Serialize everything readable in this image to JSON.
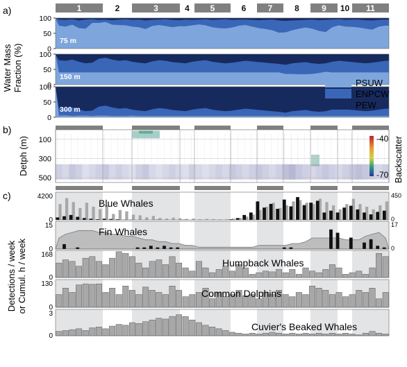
{
  "panels": {
    "a": "a)",
    "b": "b)",
    "c": "c)"
  },
  "cruise_segments": [
    "1",
    "2",
    "3",
    "4",
    "5",
    "6",
    "7",
    "8",
    "9",
    "10",
    "11"
  ],
  "segment_shaded": [
    true,
    false,
    true,
    false,
    true,
    false,
    true,
    false,
    true,
    false,
    true
  ],
  "colors": {
    "psuw": "#7ea6dc",
    "enpcw": "#3a66b8",
    "pew": "#172a5e",
    "segment_bar": "#808080",
    "shade": "#e3e4e6",
    "bar_gray": "#a8a8a8",
    "bar_black": "#111111"
  },
  "chart_data": [
    {
      "type": "area",
      "panel": "a",
      "ylabel": "Water Mass Fraction (%)",
      "yticks": [
        0,
        50,
        100
      ],
      "ylim": [
        0,
        100
      ],
      "depth_labels": [
        "75 m",
        "150 m",
        "300 m"
      ],
      "legend": [
        "PSUW",
        "ENPCW",
        "PEW"
      ],
      "legend_position": "right",
      "series_by_depth": [
        {
          "depth": "75 m",
          "PEW": [
            5,
            6,
            4,
            8,
            5,
            4,
            6,
            5,
            7,
            5,
            4,
            6,
            5,
            8,
            6,
            5,
            4,
            6,
            7,
            5,
            6,
            5,
            4,
            6,
            5,
            4,
            6,
            5,
            5,
            6,
            7,
            6,
            5,
            8,
            9,
            8,
            7,
            6,
            5,
            7,
            6,
            5,
            4,
            6,
            5,
            5,
            7,
            8,
            6,
            5
          ],
          "ENPCW": [
            20,
            22,
            18,
            25,
            30,
            12,
            10,
            8,
            15,
            18,
            20,
            22,
            25,
            28,
            20,
            18,
            22,
            24,
            20,
            22,
            18,
            16,
            20,
            24,
            28,
            30,
            25,
            20,
            18,
            22,
            26,
            30,
            35,
            40,
            38,
            32,
            28,
            25,
            30,
            35,
            40,
            25,
            20,
            22,
            24,
            26,
            28,
            30,
            22,
            20
          ]
        },
        {
          "depth": "150 m",
          "PEW": [
            20,
            22,
            18,
            25,
            30,
            28,
            15,
            12,
            18,
            22,
            20,
            25,
            28,
            30,
            24,
            20,
            22,
            26,
            28,
            30,
            25,
            22,
            20,
            25,
            28,
            30,
            28,
            25,
            22,
            24,
            26,
            28,
            30,
            32,
            35,
            30,
            28,
            26,
            30,
            32,
            30,
            25,
            22,
            24,
            26,
            28,
            30,
            28,
            25,
            22
          ],
          "ENPCW": [
            40,
            38,
            42,
            35,
            30,
            32,
            45,
            48,
            42,
            38,
            40,
            35,
            32,
            30,
            36,
            40,
            38,
            34,
            32,
            30,
            35,
            38,
            40,
            35,
            32,
            30,
            32,
            35,
            38,
            36,
            34,
            32,
            30,
            28,
            30,
            35,
            38,
            40,
            35,
            30,
            28,
            35,
            38,
            36,
            34,
            32,
            30,
            32,
            35,
            38
          ]
        },
        {
          "depth": "300 m",
          "PEW": [
            70,
            72,
            68,
            75,
            80,
            78,
            65,
            62,
            68,
            72,
            70,
            75,
            78,
            80,
            74,
            70,
            72,
            76,
            78,
            80,
            75,
            72,
            70,
            75,
            78,
            80,
            78,
            75,
            72,
            74,
            76,
            78,
            80,
            82,
            85,
            80,
            78,
            76,
            80,
            82,
            80,
            75,
            72,
            74,
            76,
            78,
            80,
            78,
            75,
            72
          ],
          "ENPCW": [
            25,
            22,
            28,
            20,
            15,
            18,
            30,
            33,
            28,
            24,
            26,
            20,
            18,
            16,
            22,
            26,
            24,
            20,
            18,
            16,
            21,
            24,
            26,
            21,
            18,
            16,
            18,
            21,
            24,
            22,
            20,
            18,
            16,
            14,
            12,
            16,
            18,
            20,
            16,
            14,
            16,
            21,
            24,
            22,
            20,
            18,
            16,
            18,
            21,
            24
          ]
        }
      ]
    },
    {
      "type": "heatmap",
      "panel": "b",
      "ylabel": "Detph (m)",
      "yticks": [
        100,
        300,
        500
      ],
      "ylim": [
        0,
        550
      ],
      "colorbar_label": "Backscatter",
      "colorbar_ticks": [
        "-40",
        "-70"
      ],
      "scattering_layer_depth_m": 420,
      "layer_intensity": [
        0.6,
        0.5,
        0.7,
        0.6,
        0.4,
        0.5,
        0.6,
        0.7,
        0.5,
        0.6,
        0.5,
        0.4,
        0.6,
        0.7,
        0.5,
        0.4,
        0.5,
        0.6,
        0.5,
        0.4,
        0.6,
        0.5,
        0.4,
        0.5,
        0.6,
        0.5,
        0.7,
        0.6,
        0.5,
        0.6,
        0.7,
        0.6,
        0.5,
        0.6,
        0.8,
        0.9,
        0.7,
        0.6,
        0.5,
        0.6,
        0.7,
        0.6,
        0.5,
        0.6,
        0.7,
        0.8,
        0.7,
        0.6,
        0.5,
        0.6
      ]
    },
    {
      "type": "bar",
      "panel": "c",
      "ylabel": "Detections / week or Cumul. h / week",
      "n_weeks": 50,
      "species": [
        {
          "name": "Blue Whales",
          "ylim": [
            0,
            4200
          ],
          "yticks": [
            "0",
            "4200"
          ],
          "y2lim": [
            0,
            450
          ],
          "y2ticks": [
            "0",
            "450"
          ],
          "detections": [
            2400,
            3300,
            2700,
            1800,
            2600,
            2000,
            1600,
            2200,
            900,
            1500,
            1300,
            800,
            700,
            400,
            600,
            300,
            200,
            350,
            250,
            150,
            200,
            100,
            150,
            120,
            80,
            100,
            200,
            300,
            500,
            800,
            1500,
            2000,
            2600,
            1800,
            2200,
            2800,
            3000,
            2600,
            2400,
            3200,
            2700,
            2200,
            1600,
            2400,
            3200,
            2400,
            2000,
            1600,
            2200,
            2800
          ],
          "cumul_hours": [
            40,
            60,
            80,
            50,
            30,
            20,
            10,
            20,
            15,
            10,
            5,
            5,
            0,
            0,
            0,
            5,
            0,
            0,
            0,
            5,
            0,
            0,
            0,
            0,
            0,
            0,
            10,
            30,
            80,
            120,
            300,
            200,
            260,
            180,
            330,
            220,
            370,
            240,
            280,
            310,
            120,
            150,
            120,
            200,
            230,
            170,
            120,
            90,
            130,
            150
          ]
        },
        {
          "name": "Fin Whales",
          "ylim": [
            0,
            15
          ],
          "yticks": [
            "0",
            "15"
          ],
          "y2lim": [
            0,
            17
          ],
          "y2ticks": [
            "0",
            "17"
          ],
          "detections": [
            6,
            8,
            9,
            10,
            10,
            10,
            9,
            9,
            8,
            8,
            7,
            7,
            6,
            5,
            5,
            4,
            4,
            3,
            3,
            2,
            2,
            1,
            1,
            1,
            1,
            1,
            1,
            1,
            1,
            1,
            2,
            2,
            2,
            2,
            2,
            3,
            3,
            4,
            6,
            6,
            6,
            6,
            6,
            5,
            5,
            5,
            7,
            8,
            9,
            6
          ],
          "cumul_hours": [
            0,
            3,
            0,
            1,
            0,
            0,
            0,
            0,
            0,
            0,
            0,
            0,
            1,
            1,
            2,
            1,
            2,
            1,
            1,
            0,
            0,
            0,
            0,
            0,
            0,
            0,
            0,
            0,
            0,
            0,
            0,
            0,
            0,
            0,
            1,
            1,
            0,
            0,
            0,
            0,
            0,
            12,
            10,
            0,
            7,
            0,
            4,
            6,
            2,
            1
          ]
        },
        {
          "name": "Humpback Whales",
          "ylim": [
            0,
            168
          ],
          "yticks": [
            "0",
            "168"
          ],
          "detections": [
            90,
            110,
            100,
            70,
            120,
            130,
            100,
            80,
            120,
            160,
            150,
            130,
            90,
            60,
            100,
            110,
            80,
            130,
            90,
            60,
            40,
            100,
            60,
            30,
            50,
            70,
            40,
            80,
            60,
            20,
            30,
            40,
            35,
            50,
            30,
            50,
            20,
            60,
            40,
            30,
            50,
            80,
            60,
            20,
            30,
            40,
            20,
            60,
            150,
            130
          ]
        },
        {
          "name": "Common Dolphins",
          "ylim": [
            0,
            130
          ],
          "yticks": [
            "0",
            "130"
          ],
          "detections": [
            60,
            90,
            70,
            105,
            110,
            108,
            110,
            70,
            90,
            60,
            100,
            80,
            60,
            95,
            80,
            70,
            60,
            100,
            80,
            50,
            60,
            70,
            90,
            40,
            70,
            50,
            60,
            80,
            55,
            60,
            40,
            70,
            60,
            80,
            60,
            50,
            70,
            60,
            100,
            90,
            80,
            60,
            70,
            50,
            60,
            80,
            70,
            90,
            40,
            70
          ]
        },
        {
          "name": "Cuvier's Beaked Whales",
          "ylim": [
            0,
            3
          ],
          "yticks": [
            "0",
            "3"
          ],
          "detections": [
            0.5,
            0.6,
            0.7,
            0.8,
            0.6,
            0.9,
            1.0,
            0.8,
            1.1,
            1.3,
            1.2,
            1.5,
            1.4,
            1.6,
            1.8,
            2.0,
            1.9,
            2.2,
            2.4,
            2.2,
            1.8,
            1.5,
            1.2,
            1.0,
            0.8,
            0.6,
            0.4,
            0.3,
            0.2,
            0.3,
            0.2,
            0.3,
            0.4,
            0.3,
            0.2,
            0.3,
            0.2,
            0.3,
            0.2,
            0.3,
            0.2,
            0.3,
            0.2,
            0.3,
            0.2,
            0.1,
            0.3,
            0.5,
            0.3,
            0.2
          ]
        }
      ]
    }
  ]
}
